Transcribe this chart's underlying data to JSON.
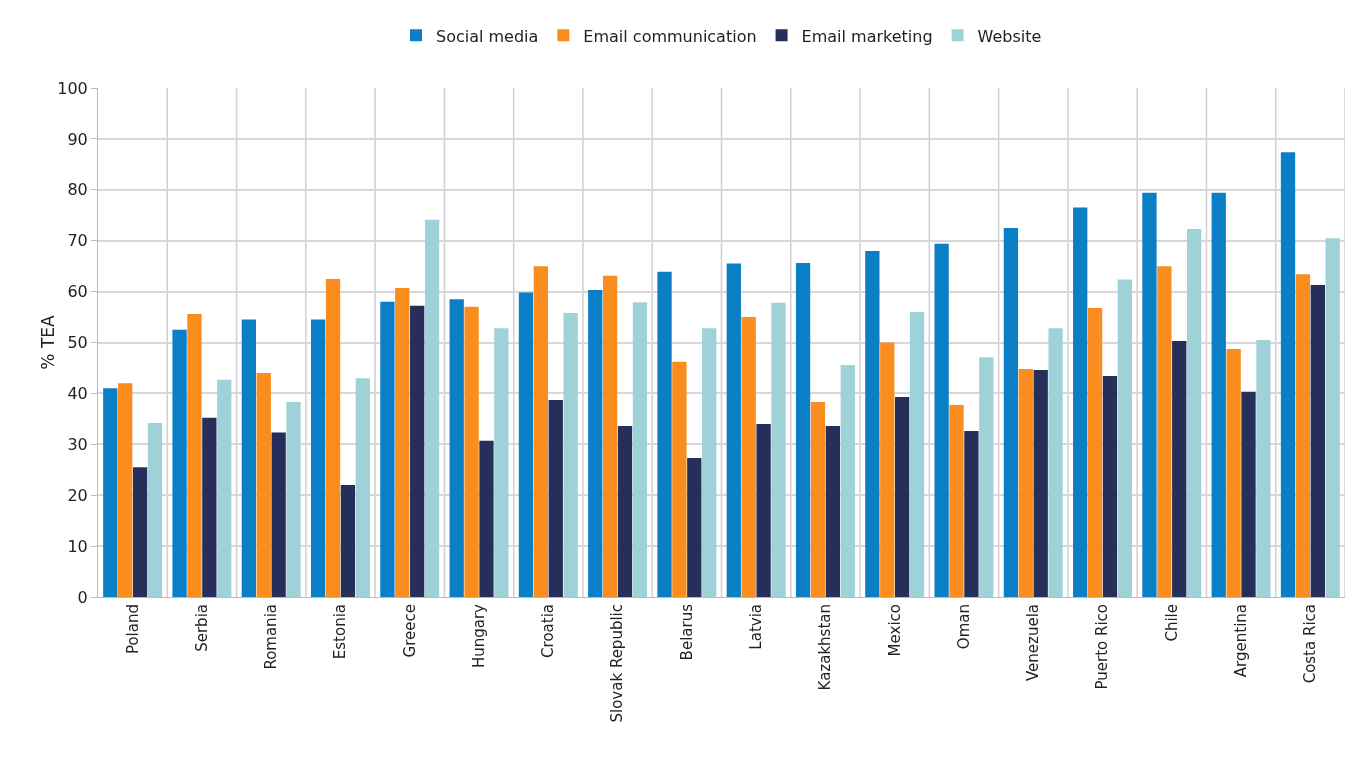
{
  "chart_data": {
    "type": "bar",
    "ylabel": "% TEA",
    "categories": [
      "Poland",
      "Serbia",
      "Romania",
      "Estonia",
      "Greece",
      "Hungary",
      "Croatia",
      "Slovak Republic",
      "Belarus",
      "Latvia",
      "Kazakhstan",
      "Mexico",
      "Oman",
      "Venezuela",
      "Puerto Rico",
      "Chile",
      "Argentina",
      "Costa Rica"
    ],
    "series": [
      {
        "name": "Social media",
        "color": "#0a7fc6",
        "values": [
          41,
          52.5,
          54.5,
          54.5,
          58,
          58.5,
          59.8,
          60.3,
          63.9,
          65.5,
          65.6,
          68,
          69.4,
          72.5,
          76.5,
          79.4,
          79.4,
          87.4
        ]
      },
      {
        "name": "Email communication",
        "color": "#fb8c1e",
        "values": [
          42,
          55.6,
          44,
          62.5,
          60.7,
          57,
          65,
          63.1,
          46.2,
          55,
          38.3,
          50,
          37.7,
          44.8,
          56.8,
          65,
          48.7,
          63.4
        ]
      },
      {
        "name": "Email marketing",
        "color": "#262f5a",
        "values": [
          25.5,
          35.2,
          32.3,
          22,
          57.2,
          30.7,
          38.7,
          33.6,
          27.3,
          34,
          33.6,
          39.3,
          32.6,
          44.6,
          43.4,
          50.3,
          40.3,
          61.3
        ]
      },
      {
        "name": "Website",
        "color": "#9fd2d8",
        "values": [
          34.2,
          42.7,
          38.3,
          43,
          74.1,
          52.8,
          55.8,
          57.9,
          52.8,
          57.8,
          45.6,
          56,
          47.1,
          52.8,
          62.4,
          72.3,
          50.5,
          70.5
        ]
      }
    ],
    "ylim": [
      0,
      100
    ],
    "yticks": [
      0,
      10,
      20,
      30,
      40,
      50,
      60,
      70,
      80,
      90,
      100
    ],
    "grid": true,
    "legend": "top"
  }
}
